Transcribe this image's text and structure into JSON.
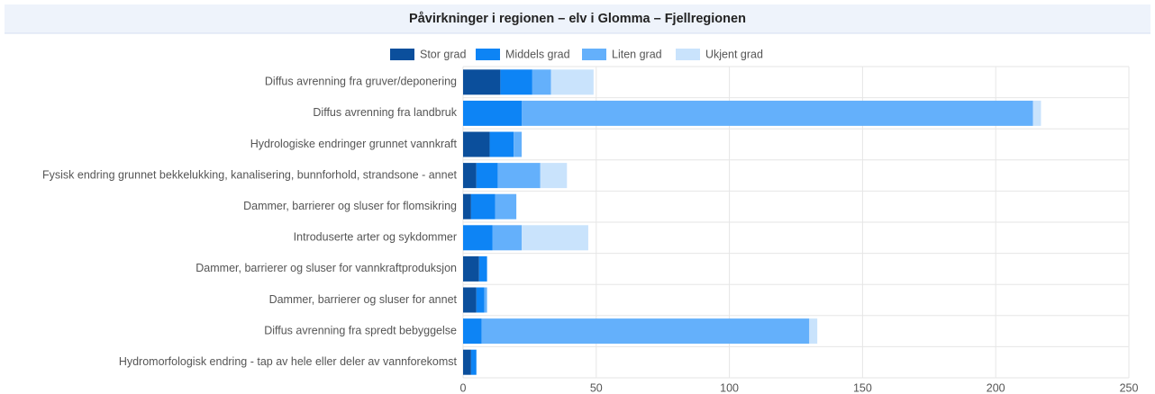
{
  "chart_data": {
    "type": "stacked_barh",
    "title": "Påvirkninger i regionen – elv i Glomma – Fjellregionen",
    "categories": [
      "Diffus avrenning fra gruver/deponering",
      "Diffus avrenning fra landbruk",
      "Hydrologiske endringer grunnet vannkraft",
      "Fysisk endring grunnet bekkelukking, kanalisering, bunnforhold, strandsone - annet",
      "Dammer, barrierer og sluser for flomsikring",
      "Introduserte arter og sykdommer",
      "Dammer, barrierer og sluser for vannkraftproduksjon",
      "Dammer, barrierer og sluser for annet",
      "Diffus avrenning fra spredt bebyggelse",
      "Hydromorfologisk endring  - tap av hele eller deler av vannforekomst"
    ],
    "series": [
      {
        "name": "Stor grad",
        "color": "#0b4f9c",
        "values": [
          14,
          0,
          10,
          5,
          3,
          0,
          6,
          5,
          0,
          3
        ]
      },
      {
        "name": "Middels grad",
        "color": "#0d84f5",
        "values": [
          12,
          22,
          9,
          8,
          9,
          11,
          3,
          3,
          7,
          2
        ]
      },
      {
        "name": "Liten grad",
        "color": "#64b0fb",
        "values": [
          7,
          192,
          3,
          16,
          8,
          11,
          0,
          1,
          123,
          0
        ]
      },
      {
        "name": "Ukjent grad",
        "color": "#c9e3fc",
        "values": [
          16,
          3,
          0,
          10,
          0,
          25,
          0,
          0,
          3,
          0
        ]
      }
    ],
    "xlim": [
      0,
      250
    ],
    "xticks": [
      0,
      50,
      100,
      150,
      200,
      250
    ],
    "grid": true,
    "legend": "top"
  }
}
